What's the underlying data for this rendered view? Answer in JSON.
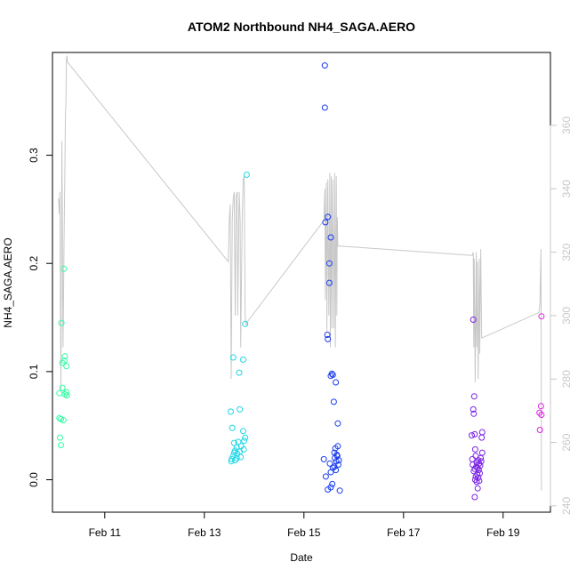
{
  "chart_data": {
    "type": "scatter",
    "title": "ATOM2 Northbound NH4_SAGA.AERO",
    "xlabel": "Date",
    "ylabel": "NH4_SAGA.AERO",
    "x_unit": "days since Feb 10 00:00",
    "xlim": [
      -0.05,
      9.95
    ],
    "ylim": [
      -0.03,
      0.395
    ],
    "x_ticks": [
      {
        "value": 1,
        "label": "Feb 11"
      },
      {
        "value": 3,
        "label": "Feb 13"
      },
      {
        "value": 5,
        "label": "Feb 15"
      },
      {
        "value": 7,
        "label": "Feb 17"
      },
      {
        "value": 9,
        "label": "Feb 19"
      }
    ],
    "y_ticks": [
      {
        "value": 0.0,
        "label": "0.0"
      },
      {
        "value": 0.1,
        "label": "0.1"
      },
      {
        "value": 0.2,
        "label": "0.2"
      },
      {
        "value": 0.3,
        "label": "0.3"
      }
    ],
    "y2_lim": [
      238,
      383
    ],
    "y2_ticks": [
      {
        "value": 240,
        "label": "240"
      },
      {
        "value": 260,
        "label": "260"
      },
      {
        "value": 280,
        "label": "280"
      },
      {
        "value": 300,
        "label": "300"
      },
      {
        "value": 320,
        "label": "320"
      },
      {
        "value": 340,
        "label": "340"
      },
      {
        "value": 360,
        "label": "360"
      }
    ],
    "points": [
      {
        "x": 0.18,
        "y": 0.195,
        "color": "#2effa2"
      },
      {
        "x": 0.13,
        "y": 0.145,
        "color": "#2effa2"
      },
      {
        "x": 0.2,
        "y": 0.114,
        "color": "#2effa2"
      },
      {
        "x": 0.19,
        "y": 0.11,
        "color": "#2effa2"
      },
      {
        "x": 0.15,
        "y": 0.108,
        "color": "#2effa2"
      },
      {
        "x": 0.23,
        "y": 0.105,
        "color": "#2effa2"
      },
      {
        "x": 0.15,
        "y": 0.085,
        "color": "#2effa2"
      },
      {
        "x": 0.23,
        "y": 0.081,
        "color": "#2effa2"
      },
      {
        "x": 0.09,
        "y": 0.08,
        "color": "#2effa2"
      },
      {
        "x": 0.2,
        "y": 0.079,
        "color": "#2effa2"
      },
      {
        "x": 0.24,
        "y": 0.078,
        "color": "#2effa2"
      },
      {
        "x": 0.09,
        "y": 0.057,
        "color": "#2effa2"
      },
      {
        "x": 0.12,
        "y": 0.056,
        "color": "#2effa2"
      },
      {
        "x": 0.17,
        "y": 0.055,
        "color": "#2effa2"
      },
      {
        "x": 0.1,
        "y": 0.039,
        "color": "#2effa2"
      },
      {
        "x": 0.12,
        "y": 0.032,
        "color": "#2effa2"
      },
      {
        "x": 3.85,
        "y": 0.282,
        "color": "#20d6e6"
      },
      {
        "x": 3.82,
        "y": 0.144,
        "color": "#20d6e6"
      },
      {
        "x": 3.58,
        "y": 0.113,
        "color": "#20d6e6"
      },
      {
        "x": 3.78,
        "y": 0.111,
        "color": "#20d6e6"
      },
      {
        "x": 3.7,
        "y": 0.099,
        "color": "#20d6e6"
      },
      {
        "x": 3.71,
        "y": 0.065,
        "color": "#20d6e6"
      },
      {
        "x": 3.53,
        "y": 0.063,
        "color": "#20d6e6"
      },
      {
        "x": 3.56,
        "y": 0.048,
        "color": "#20d6e6"
      },
      {
        "x": 3.78,
        "y": 0.045,
        "color": "#20d6e6"
      },
      {
        "x": 3.82,
        "y": 0.039,
        "color": "#20d6e6"
      },
      {
        "x": 3.8,
        "y": 0.036,
        "color": "#20d6e6"
      },
      {
        "x": 3.68,
        "y": 0.035,
        "color": "#20d6e6"
      },
      {
        "x": 3.6,
        "y": 0.034,
        "color": "#20d6e6"
      },
      {
        "x": 3.74,
        "y": 0.031,
        "color": "#20d6e6"
      },
      {
        "x": 3.65,
        "y": 0.03,
        "color": "#20d6e6"
      },
      {
        "x": 3.79,
        "y": 0.028,
        "color": "#20d6e6"
      },
      {
        "x": 3.62,
        "y": 0.027,
        "color": "#20d6e6"
      },
      {
        "x": 3.71,
        "y": 0.026,
        "color": "#20d6e6"
      },
      {
        "x": 3.6,
        "y": 0.025,
        "color": "#20d6e6"
      },
      {
        "x": 3.66,
        "y": 0.024,
        "color": "#20d6e6"
      },
      {
        "x": 3.58,
        "y": 0.022,
        "color": "#20d6e6"
      },
      {
        "x": 3.73,
        "y": 0.021,
        "color": "#20d6e6"
      },
      {
        "x": 3.65,
        "y": 0.02,
        "color": "#20d6e6"
      },
      {
        "x": 3.55,
        "y": 0.019,
        "color": "#20d6e6"
      },
      {
        "x": 3.62,
        "y": 0.018,
        "color": "#20d6e6"
      },
      {
        "x": 3.54,
        "y": 0.017,
        "color": "#20d6e6"
      },
      {
        "x": 5.42,
        "y": 0.383,
        "color": "#1a3cf0"
      },
      {
        "x": 5.42,
        "y": 0.344,
        "color": "#1a3cf0"
      },
      {
        "x": 5.48,
        "y": 0.243,
        "color": "#1a3cf0"
      },
      {
        "x": 5.43,
        "y": 0.238,
        "color": "#1a3cf0"
      },
      {
        "x": 5.54,
        "y": 0.224,
        "color": "#1a3cf0"
      },
      {
        "x": 5.51,
        "y": 0.2,
        "color": "#1a3cf0"
      },
      {
        "x": 5.51,
        "y": 0.182,
        "color": "#1a3cf0"
      },
      {
        "x": 5.47,
        "y": 0.134,
        "color": "#1a3cf0"
      },
      {
        "x": 5.48,
        "y": 0.13,
        "color": "#1a3cf0"
      },
      {
        "x": 5.56,
        "y": 0.098,
        "color": "#1a3cf0"
      },
      {
        "x": 5.58,
        "y": 0.097,
        "color": "#1a3cf0"
      },
      {
        "x": 5.54,
        "y": 0.096,
        "color": "#1a3cf0"
      },
      {
        "x": 5.64,
        "y": 0.09,
        "color": "#1a3cf0"
      },
      {
        "x": 5.6,
        "y": 0.072,
        "color": "#1a3cf0"
      },
      {
        "x": 5.68,
        "y": 0.052,
        "color": "#1a3cf0"
      },
      {
        "x": 5.68,
        "y": 0.031,
        "color": "#1a3cf0"
      },
      {
        "x": 5.63,
        "y": 0.029,
        "color": "#1a3cf0"
      },
      {
        "x": 5.61,
        "y": 0.025,
        "color": "#1a3cf0"
      },
      {
        "x": 5.66,
        "y": 0.023,
        "color": "#1a3cf0"
      },
      {
        "x": 5.67,
        "y": 0.022,
        "color": "#1a3cf0"
      },
      {
        "x": 5.62,
        "y": 0.02,
        "color": "#1a3cf0"
      },
      {
        "x": 5.4,
        "y": 0.019,
        "color": "#1a3cf0"
      },
      {
        "x": 5.7,
        "y": 0.018,
        "color": "#1a3cf0"
      },
      {
        "x": 5.65,
        "y": 0.017,
        "color": "#1a3cf0"
      },
      {
        "x": 5.52,
        "y": 0.015,
        "color": "#1a3cf0"
      },
      {
        "x": 5.69,
        "y": 0.014,
        "color": "#1a3cf0"
      },
      {
        "x": 5.61,
        "y": 0.012,
        "color": "#1a3cf0"
      },
      {
        "x": 5.58,
        "y": 0.011,
        "color": "#1a3cf0"
      },
      {
        "x": 5.64,
        "y": 0.009,
        "color": "#1a3cf0"
      },
      {
        "x": 5.54,
        "y": 0.007,
        "color": "#1a3cf0"
      },
      {
        "x": 5.44,
        "y": 0.003,
        "color": "#1a3cf0"
      },
      {
        "x": 5.57,
        "y": -0.004,
        "color": "#1a3cf0"
      },
      {
        "x": 5.54,
        "y": -0.007,
        "color": "#1a3cf0"
      },
      {
        "x": 5.48,
        "y": -0.009,
        "color": "#1a3cf0"
      },
      {
        "x": 5.72,
        "y": -0.01,
        "color": "#1a3cf0"
      },
      {
        "x": 8.4,
        "y": 0.148,
        "color": "#7a22e6"
      },
      {
        "x": 8.42,
        "y": 0.077,
        "color": "#7a22e6"
      },
      {
        "x": 8.4,
        "y": 0.065,
        "color": "#7a22e6"
      },
      {
        "x": 8.41,
        "y": 0.061,
        "color": "#7a22e6"
      },
      {
        "x": 8.58,
        "y": 0.044,
        "color": "#7a22e6"
      },
      {
        "x": 8.43,
        "y": 0.042,
        "color": "#7a22e6"
      },
      {
        "x": 8.37,
        "y": 0.041,
        "color": "#7a22e6"
      },
      {
        "x": 8.57,
        "y": 0.039,
        "color": "#7a22e6"
      },
      {
        "x": 8.44,
        "y": 0.028,
        "color": "#7a22e6"
      },
      {
        "x": 8.58,
        "y": 0.025,
        "color": "#7a22e6"
      },
      {
        "x": 8.45,
        "y": 0.022,
        "color": "#7a22e6"
      },
      {
        "x": 8.55,
        "y": 0.02,
        "color": "#7a22e6"
      },
      {
        "x": 8.38,
        "y": 0.019,
        "color": "#7a22e6"
      },
      {
        "x": 8.5,
        "y": 0.018,
        "color": "#7a22e6"
      },
      {
        "x": 8.56,
        "y": 0.017,
        "color": "#7a22e6"
      },
      {
        "x": 8.47,
        "y": 0.016,
        "color": "#7a22e6"
      },
      {
        "x": 8.52,
        "y": 0.015,
        "color": "#7a22e6"
      },
      {
        "x": 8.39,
        "y": 0.014,
        "color": "#7a22e6"
      },
      {
        "x": 8.54,
        "y": 0.013,
        "color": "#7a22e6"
      },
      {
        "x": 8.46,
        "y": 0.012,
        "color": "#7a22e6"
      },
      {
        "x": 8.49,
        "y": 0.011,
        "color": "#7a22e6"
      },
      {
        "x": 8.43,
        "y": 0.01,
        "color": "#7a22e6"
      },
      {
        "x": 8.51,
        "y": 0.009,
        "color": "#7a22e6"
      },
      {
        "x": 8.41,
        "y": 0.008,
        "color": "#7a22e6"
      },
      {
        "x": 8.53,
        "y": 0.006,
        "color": "#7a22e6"
      },
      {
        "x": 8.48,
        "y": 0.005,
        "color": "#7a22e6"
      },
      {
        "x": 8.45,
        "y": 0.003,
        "color": "#7a22e6"
      },
      {
        "x": 8.5,
        "y": 0.002,
        "color": "#7a22e6"
      },
      {
        "x": 8.44,
        "y": 0.0,
        "color": "#7a22e6"
      },
      {
        "x": 8.52,
        "y": -0.001,
        "color": "#7a22e6"
      },
      {
        "x": 8.47,
        "y": -0.002,
        "color": "#7a22e6"
      },
      {
        "x": 8.49,
        "y": -0.008,
        "color": "#7a22e6"
      },
      {
        "x": 8.43,
        "y": -0.016,
        "color": "#7a22e6"
      },
      {
        "x": 9.77,
        "y": 0.151,
        "color": "#e020e6"
      },
      {
        "x": 9.76,
        "y": 0.068,
        "color": "#e020e6"
      },
      {
        "x": 9.73,
        "y": 0.062,
        "color": "#e020e6"
      },
      {
        "x": 9.77,
        "y": 0.06,
        "color": "#e020e6"
      },
      {
        "x": 9.74,
        "y": 0.046,
        "color": "#e020e6"
      }
    ],
    "altitude_line": {
      "name": "secondary axis trace",
      "color": "#c8c8c8",
      "points": [
        [
          0.07,
          337
        ],
        [
          0.09,
          332
        ],
        [
          0.1,
          339
        ],
        [
          0.11,
          300
        ],
        [
          0.12,
          276
        ],
        [
          0.14,
          355
        ],
        [
          0.15,
          330
        ],
        [
          0.16,
          290
        ],
        [
          0.17,
          300
        ],
        [
          0.18,
          320
        ],
        [
          0.2,
          347
        ],
        [
          0.21,
          364
        ],
        [
          0.22,
          366
        ],
        [
          0.23,
          381
        ],
        [
          0.24,
          382
        ],
        [
          0.25,
          380
        ],
        [
          3.48,
          317
        ],
        [
          3.5,
          330
        ],
        [
          3.52,
          335
        ],
        [
          3.54,
          280
        ],
        [
          3.56,
          330
        ],
        [
          3.58,
          337
        ],
        [
          3.6,
          339
        ],
        [
          3.62,
          300
        ],
        [
          3.64,
          338
        ],
        [
          3.66,
          339
        ],
        [
          3.67,
          300
        ],
        [
          3.7,
          339
        ],
        [
          3.72,
          330
        ],
        [
          3.73,
          290
        ],
        [
          3.76,
          331
        ],
        [
          3.78,
          343
        ],
        [
          3.8,
          344
        ],
        [
          3.82,
          300
        ],
        [
          3.84,
          297
        ],
        [
          3.86,
          298
        ],
        [
          5.4,
          330
        ],
        [
          5.42,
          340
        ],
        [
          5.43,
          305
        ],
        [
          5.45,
          342
        ],
        [
          5.46,
          295
        ],
        [
          5.48,
          343
        ],
        [
          5.5,
          300
        ],
        [
          5.52,
          345
        ],
        [
          5.53,
          290
        ],
        [
          5.55,
          344
        ],
        [
          5.56,
          296
        ],
        [
          5.58,
          343
        ],
        [
          5.6,
          296
        ],
        [
          5.62,
          345
        ],
        [
          5.63,
          290
        ],
        [
          5.65,
          344
        ],
        [
          5.66,
          300
        ],
        [
          5.67,
          331
        ],
        [
          5.68,
          322
        ],
        [
          8.38,
          319
        ],
        [
          8.4,
          320
        ],
        [
          8.41,
          290
        ],
        [
          8.42,
          318
        ],
        [
          8.44,
          279
        ],
        [
          8.46,
          320
        ],
        [
          8.47,
          290
        ],
        [
          8.48,
          317
        ],
        [
          8.5,
          280
        ],
        [
          8.52,
          318
        ],
        [
          8.53,
          288
        ],
        [
          8.55,
          321
        ],
        [
          8.57,
          293
        ],
        [
          8.58,
          293
        ],
        [
          9.72,
          301
        ],
        [
          9.74,
          304
        ],
        [
          9.76,
          321
        ],
        [
          9.77,
          245
        ],
        [
          9.78,
          245
        ]
      ]
    }
  }
}
